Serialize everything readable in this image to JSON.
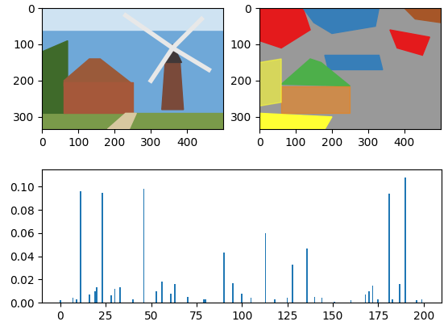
{
  "chart_data": [
    {
      "type": "image",
      "xlim": [
        -0.5,
        499.5
      ],
      "ylim": [
        333.5,
        -0.5
      ],
      "xticks": [
        0,
        100,
        200,
        300,
        400
      ],
      "yticks": [
        0,
        100,
        200,
        300
      ]
    },
    {
      "type": "image_segmentation",
      "xlim": [
        -0.5,
        499.5
      ],
      "ylim": [
        333.5,
        -0.5
      ],
      "xticks": [
        0,
        100,
        200,
        300,
        400
      ],
      "yticks": [
        0,
        100,
        200,
        300
      ]
    },
    {
      "type": "bar",
      "color": "#1f77b4",
      "x": [
        0,
        7,
        9,
        11,
        16,
        19,
        20,
        23,
        28,
        30,
        33,
        40,
        46,
        53,
        56,
        61,
        63,
        70,
        79,
        80,
        90,
        95,
        100,
        105,
        113,
        118,
        125,
        128,
        136,
        140,
        144,
        151,
        160,
        168,
        170,
        172,
        175,
        181,
        183,
        187,
        190,
        196,
        199
      ],
      "values": [
        0.002,
        0.004,
        0.003,
        0.096,
        0.007,
        0.01,
        0.013,
        0.095,
        0.006,
        0.012,
        0.013,
        0.003,
        0.098,
        0.01,
        0.018,
        0.008,
        0.016,
        0.005,
        0.003,
        0.003,
        0.043,
        0.017,
        0.008,
        0.004,
        0.06,
        0.003,
        0.004,
        0.033,
        0.047,
        0.005,
        0.004,
        0.001,
        0.002,
        0.007,
        0.01,
        0.015,
        0.003,
        0.094,
        0.003,
        0.016,
        0.108,
        0.002,
        0.003
      ],
      "xlim": [
        -10,
        210
      ],
      "ylim": [
        0,
        0.115
      ],
      "xticks": [
        0,
        25,
        50,
        75,
        100,
        125,
        150,
        175,
        200
      ],
      "yticks": [
        {
          "value": 0,
          "label": "0.00"
        },
        {
          "value": 0.02,
          "label": "0.02"
        },
        {
          "value": 0.04,
          "label": "0.04"
        },
        {
          "value": 0.06,
          "label": "0.06"
        },
        {
          "value": 0.08,
          "label": "0.08"
        },
        {
          "value": 0.1,
          "label": "0.10"
        }
      ]
    }
  ]
}
